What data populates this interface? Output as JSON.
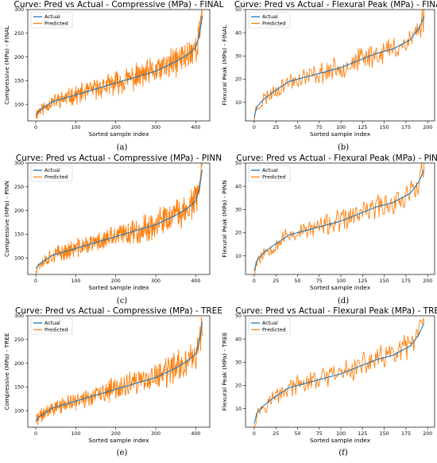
{
  "chart_data": [
    {
      "type": "line",
      "panel": "(a)",
      "kind": "comp",
      "title": "Curve: Pred vs Actual - Compressive (MPa) - FINAL",
      "xlabel": "Sorted sample index",
      "ylabel": "Compressive (MPa) - FINAL",
      "xlim": [
        -20,
        435
      ],
      "ylim": [
        65,
        300
      ],
      "xticks": [
        0,
        100,
        200,
        300,
        400
      ],
      "yticks": [
        100,
        150,
        200,
        250,
        300
      ],
      "n": 417,
      "series": [
        {
          "name": "Actual",
          "color": "#1f77b4",
          "x": [
            0,
            10,
            20,
            40,
            100,
            200,
            300,
            350,
            380,
            400,
            410,
            417
          ],
          "y": [
            78,
            88,
            93,
            105,
            120,
            145,
            170,
            190,
            205,
            220,
            250,
            292
          ]
        },
        {
          "name": "Predicted",
          "color": "#ff7f0e",
          "noise": 22,
          "seed": 11
        }
      ],
      "legend": "top-left",
      "grid": false
    },
    {
      "type": "line",
      "panel": "(b)",
      "kind": "flex",
      "title": "Curve: Pred vs Actual - Flexural Peak (MPa) - FINAL",
      "xlabel": "Sorted sample index",
      "ylabel": "Flexural Peak (MPa) - FINAL",
      "xlim": [
        -10,
        208
      ],
      "ylim": [
        2,
        50
      ],
      "xticks": [
        0,
        25,
        50,
        75,
        100,
        125,
        150,
        175,
        200
      ],
      "yticks": [
        10,
        20,
        30,
        40,
        50
      ],
      "n": 197,
      "series": [
        {
          "name": "Actual",
          "color": "#1f77b4",
          "x": [
            0,
            3,
            10,
            20,
            40,
            60,
            80,
            100,
            120,
            140,
            160,
            180,
            190,
            197
          ],
          "y": [
            3.5,
            8,
            11,
            14,
            19,
            21,
            23,
            25,
            28,
            31,
            33,
            37,
            42,
            48
          ]
        },
        {
          "name": "Predicted",
          "color": "#ff7f0e",
          "noise": 4.2,
          "seed": 23
        }
      ],
      "legend": "top-left",
      "grid": false
    },
    {
      "type": "line",
      "panel": "(c)",
      "kind": "comp",
      "title": "Curve: Pred vs Actual - Compressive (MPa) - PINN",
      "xlabel": "Sorted sample index",
      "ylabel": "Compressive (MPa) - PINN",
      "xlim": [
        -20,
        435
      ],
      "ylim": [
        65,
        300
      ],
      "xticks": [
        0,
        100,
        200,
        300,
        400
      ],
      "yticks": [
        100,
        150,
        200,
        250,
        300
      ],
      "n": 417,
      "series": [
        {
          "name": "Actual",
          "color": "#1f77b4",
          "x": [
            0,
            10,
            20,
            40,
            100,
            200,
            300,
            350,
            380,
            400,
            410,
            417
          ],
          "y": [
            78,
            88,
            93,
            105,
            120,
            145,
            170,
            190,
            205,
            220,
            250,
            292
          ]
        },
        {
          "name": "Predicted",
          "color": "#ff7f0e",
          "noise": 22,
          "seed": 37
        }
      ],
      "legend": "top-left",
      "grid": false
    },
    {
      "type": "line",
      "panel": "(d)",
      "kind": "flex",
      "title": "Curve: Pred vs Actual - Flexural Peak (MPa) - PINN",
      "xlabel": "Sorted sample index",
      "ylabel": "Flexural Peak (MPa) - PINN",
      "xlim": [
        -10,
        208
      ],
      "ylim": [
        2,
        50
      ],
      "xticks": [
        0,
        25,
        50,
        75,
        100,
        125,
        150,
        175,
        200
      ],
      "yticks": [
        10,
        20,
        30,
        40,
        50
      ],
      "n": 197,
      "series": [
        {
          "name": "Actual",
          "color": "#1f77b4",
          "x": [
            0,
            3,
            10,
            20,
            40,
            60,
            80,
            100,
            120,
            140,
            160,
            180,
            190,
            197
          ],
          "y": [
            3.5,
            8,
            11,
            14,
            19,
            21,
            23,
            25,
            28,
            31,
            33,
            37,
            42,
            48
          ]
        },
        {
          "name": "Predicted",
          "color": "#ff7f0e",
          "noise": 4.2,
          "seed": 53
        }
      ],
      "legend": "top-left",
      "grid": false
    },
    {
      "type": "line",
      "panel": "(e)",
      "kind": "comp",
      "title": "Curve: Pred vs Actual - Compressive (MPa) - TREE",
      "xlabel": "Sorted sample index",
      "ylabel": "Compressive (MPa) - TREE",
      "xlim": [
        -20,
        435
      ],
      "ylim": [
        65,
        300
      ],
      "xticks": [
        0,
        100,
        200,
        300,
        400
      ],
      "yticks": [
        100,
        150,
        200,
        250,
        300
      ],
      "n": 417,
      "series": [
        {
          "name": "Actual",
          "color": "#1f77b4",
          "x": [
            0,
            10,
            20,
            40,
            100,
            200,
            300,
            350,
            380,
            400,
            410,
            417
          ],
          "y": [
            78,
            88,
            93,
            105,
            120,
            145,
            170,
            190,
            205,
            220,
            250,
            292
          ]
        },
        {
          "name": "Predicted",
          "color": "#ff7f0e",
          "noise": 22,
          "seed": 71
        }
      ],
      "legend": "top-left",
      "grid": false
    },
    {
      "type": "line",
      "panel": "(f)",
      "kind": "flex",
      "title": "Curve: Pred vs Actual - Flexural Peak (MPa) - TREE",
      "xlabel": "Sorted sample index",
      "ylabel": "Flexural Peak (MPa) - TREE",
      "xlim": [
        -10,
        208
      ],
      "ylim": [
        2,
        50
      ],
      "xticks": [
        0,
        25,
        50,
        75,
        100,
        125,
        150,
        175,
        200
      ],
      "yticks": [
        10,
        20,
        30,
        40,
        50
      ],
      "n": 197,
      "series": [
        {
          "name": "Actual",
          "color": "#1f77b4",
          "x": [
            0,
            3,
            10,
            20,
            40,
            60,
            80,
            100,
            120,
            140,
            160,
            180,
            190,
            197
          ],
          "y": [
            3.5,
            8,
            11,
            14,
            19,
            21,
            23,
            25,
            28,
            31,
            33,
            37,
            42,
            48
          ]
        },
        {
          "name": "Predicted",
          "color": "#ff7f0e",
          "noise": 4.2,
          "seed": 97
        }
      ],
      "legend": "top-left",
      "grid": false
    }
  ]
}
